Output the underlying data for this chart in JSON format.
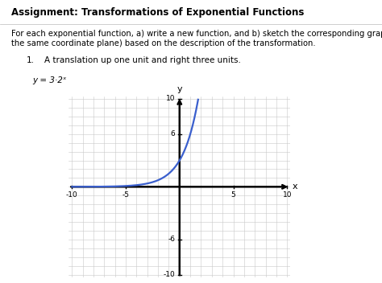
{
  "title": "Assignment: Transformations of Exponential Functions",
  "instructions_line1": "For each exponential function, a) write a new function, and b) sketch the corresponding graph (on",
  "instructions_line2": "the same coordinate plane) based on the description of the transformation.",
  "item_number": "1.",
  "item_text": "A translation up one unit and right three units.",
  "equation_label": "y = 3·2ˣ",
  "xlim": [
    -10,
    10
  ],
  "ylim": [
    -10,
    10
  ],
  "grid_color": "#c8c8c8",
  "axis_color": "#000000",
  "curve_color": "#3a5fcd",
  "curve_linewidth": 1.6,
  "background_color": "#ffffff",
  "text_color": "#000000",
  "fig_width": 4.74,
  "fig_height": 3.52,
  "dpi": 100
}
